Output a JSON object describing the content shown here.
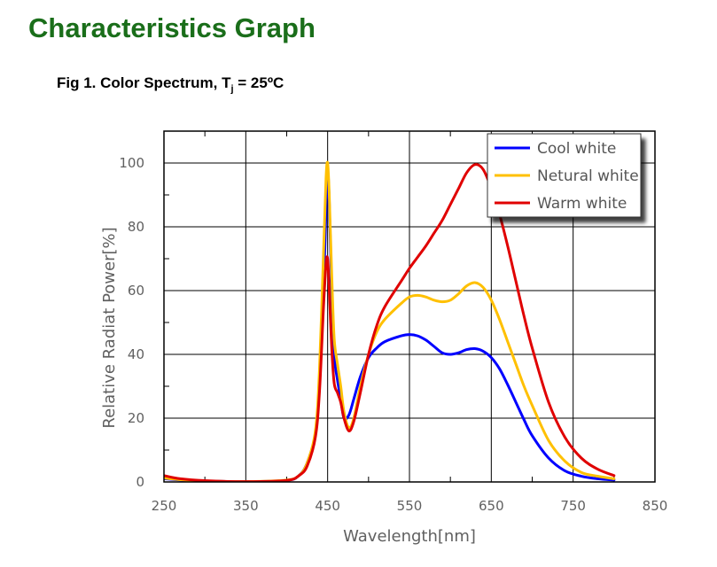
{
  "heading": "Characteristics Graph",
  "caption": {
    "prefix": "Fig 1. Color Spectrum, T",
    "subscript": "j",
    "suffix": " = 25ºC"
  },
  "chart_data": {
    "type": "line",
    "xlabel": "Wavelength[nm]",
    "ylabel": "Relative Radiat Power[%]",
    "xlim": [
      250,
      850
    ],
    "ylim": [
      0,
      110
    ],
    "xticks": [
      250,
      350,
      450,
      550,
      650,
      750,
      850
    ],
    "yticks": [
      0,
      20,
      40,
      60,
      80,
      100
    ],
    "grid": true,
    "legend_position": "top-right",
    "series": [
      {
        "name": "Cool white",
        "color": "#0000ff",
        "x": [
          250,
          270,
          300,
          350,
          400,
          415,
          425,
          435,
          440,
          445,
          448,
          450,
          452,
          455,
          458,
          462,
          466,
          470,
          476,
          482,
          490,
          500,
          510,
          520,
          540,
          550,
          560,
          570,
          580,
          590,
          600,
          610,
          620,
          630,
          640,
          650,
          660,
          670,
          680,
          690,
          700,
          720,
          740,
          760,
          780,
          800
        ],
        "y": [
          1,
          0.6,
          0.3,
          0.1,
          0.5,
          2,
          6,
          15,
          30,
          60,
          85,
          97,
          88,
          60,
          40,
          32,
          26,
          20,
          21,
          26,
          33,
          39,
          42,
          44,
          45.8,
          46.2,
          45.8,
          44.5,
          42.5,
          40.5,
          40,
          40.5,
          41.5,
          41.8,
          41,
          39,
          35.5,
          30.5,
          25,
          19.5,
          14.5,
          7.5,
          3.5,
          1.8,
          1,
          0.6
        ]
      },
      {
        "name": "Netural white",
        "color": "#ffc000",
        "x": [
          250,
          270,
          300,
          350,
          400,
          415,
          425,
          435,
          440,
          445,
          448,
          450,
          452,
          455,
          458,
          462,
          466,
          470,
          476,
          482,
          490,
          500,
          510,
          520,
          540,
          550,
          560,
          570,
          580,
          590,
          600,
          610,
          620,
          630,
          640,
          650,
          660,
          670,
          680,
          690,
          700,
          720,
          740,
          760,
          780,
          800
        ],
        "y": [
          1.2,
          0.7,
          0.3,
          0.1,
          0.6,
          2,
          6,
          16,
          35,
          72,
          95,
          100,
          90,
          65,
          45,
          37,
          30,
          22,
          17,
          20,
          30,
          40,
          47,
          51,
          56,
          58,
          58.5,
          58,
          57,
          56.5,
          57,
          59,
          61.5,
          62.5,
          61,
          57,
          51,
          44,
          37,
          30,
          24,
          13,
          6.5,
          3,
          1.8,
          1
        ]
      },
      {
        "name": "Warm white",
        "color": "#e00000",
        "x": [
          250,
          270,
          300,
          350,
          400,
          415,
          425,
          435,
          440,
          445,
          448,
          450,
          452,
          455,
          458,
          462,
          466,
          470,
          476,
          482,
          490,
          500,
          510,
          520,
          540,
          550,
          560,
          570,
          580,
          590,
          600,
          610,
          620,
          630,
          640,
          650,
          660,
          670,
          680,
          690,
          700,
          720,
          740,
          760,
          780,
          800
        ],
        "y": [
          2,
          1,
          0.4,
          0.1,
          0.5,
          2,
          5,
          14,
          28,
          55,
          68,
          70,
          60,
          42,
          31,
          28,
          25,
          20,
          16,
          19,
          28,
          40,
          49,
          55,
          63,
          67,
          70.5,
          74,
          78,
          82,
          87,
          92,
          97,
          99.5,
          98,
          92,
          84,
          74,
          63,
          52,
          42,
          25,
          14,
          7.5,
          4,
          2
        ]
      }
    ]
  }
}
